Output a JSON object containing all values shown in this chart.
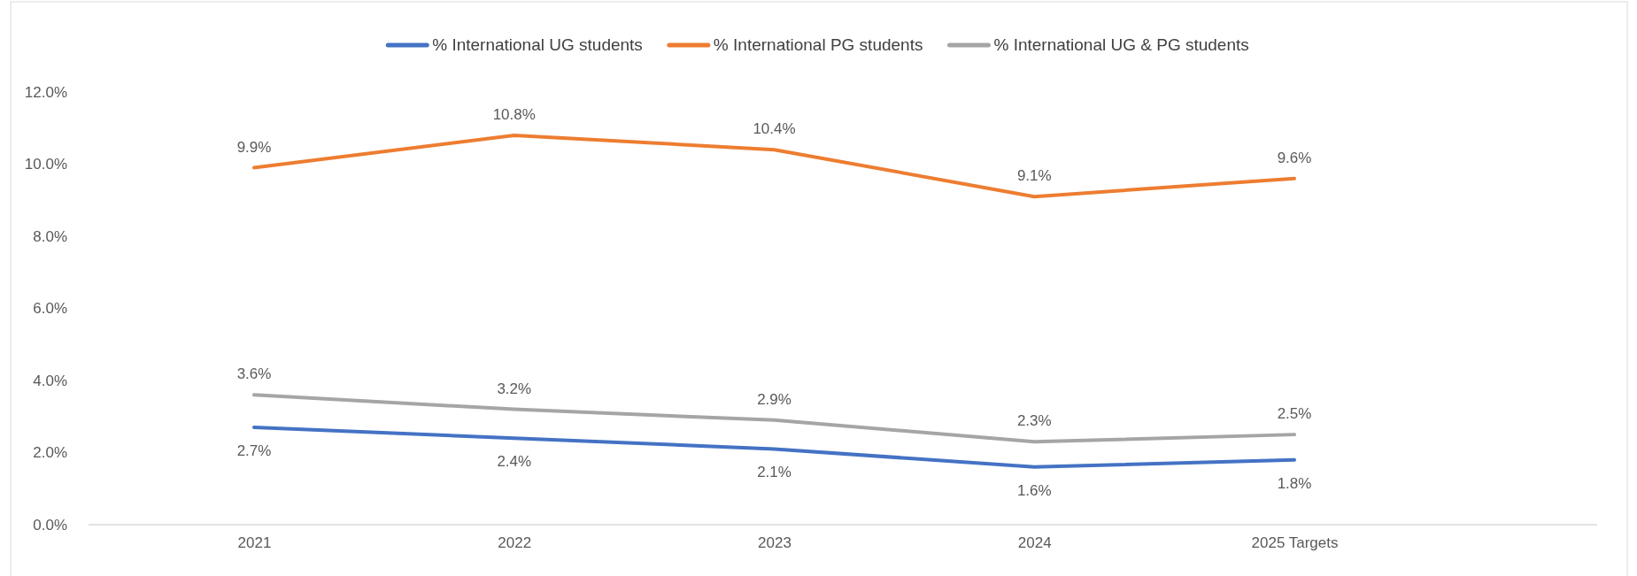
{
  "chart_data": {
    "type": "line",
    "categories": [
      "2021",
      "2022",
      "2023",
      "2024",
      "2025 Targets"
    ],
    "series": [
      {
        "name": "% International UG students",
        "color": "#4472c4",
        "values": [
          2.7,
          2.4,
          2.1,
          1.6,
          1.8
        ],
        "value_labels": [
          "2.7%",
          "2.4%",
          "2.1%",
          "1.6%",
          "1.8%"
        ]
      },
      {
        "name": "% International PG students",
        "color": "#ed7d31",
        "values": [
          9.9,
          10.8,
          10.4,
          9.1,
          9.6
        ],
        "value_labels": [
          "9.9%",
          "10.8%",
          "10.4%",
          "9.1%",
          "9.6%"
        ]
      },
      {
        "name": "% International UG & PG students",
        "color": "#a5a5a5",
        "values": [
          3.6,
          3.2,
          2.9,
          2.3,
          2.5
        ],
        "value_labels": [
          "3.6%",
          "3.2%",
          "2.9%",
          "2.3%",
          "2.5%"
        ]
      }
    ],
    "ylim": [
      0,
      12
    ],
    "yticks": [
      {
        "value": 0,
        "label": "0.0%"
      },
      {
        "value": 2,
        "label": "2.0%"
      },
      {
        "value": 4,
        "label": "4.0%"
      },
      {
        "value": 6,
        "label": "6.0%"
      },
      {
        "value": 8,
        "label": "8.0%"
      },
      {
        "value": 10,
        "label": "10.0%"
      },
      {
        "value": 12,
        "label": "12.0%"
      }
    ],
    "legend": "top",
    "marker": "none",
    "line_style": "solid"
  }
}
